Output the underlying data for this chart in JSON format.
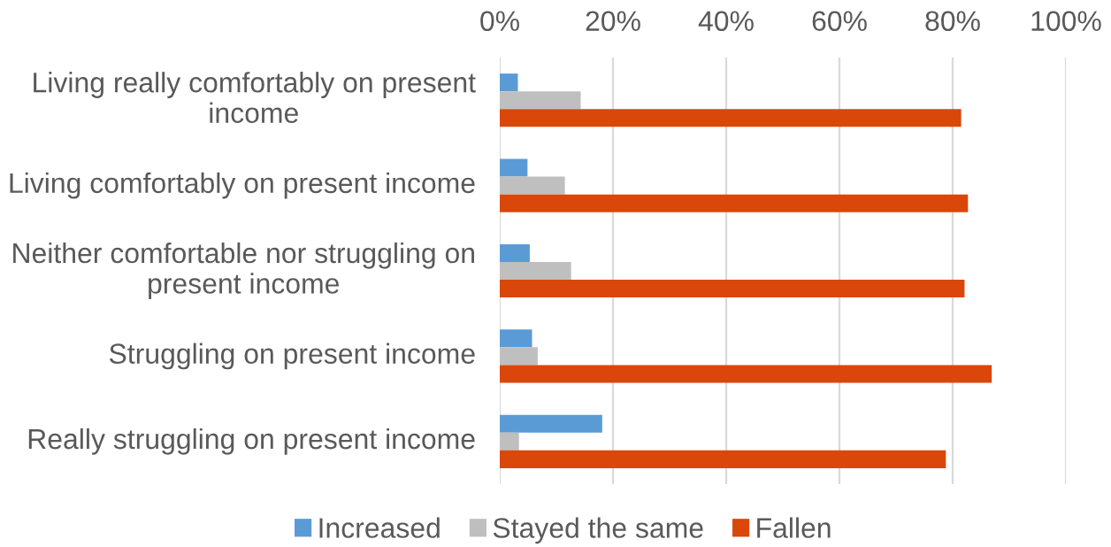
{
  "chart_data": {
    "type": "bar",
    "orientation": "horizontal",
    "categories": [
      "Living really comfortably on present income",
      "Living comfortably on present income",
      "Neither comfortable nor struggling on present income",
      "Struggling on present income",
      "Really struggling on present income"
    ],
    "series": [
      {
        "name": "Increased",
        "color": "#5b9bd5",
        "values": [
          3.2,
          4.9,
          5.3,
          5.7,
          18.1
        ]
      },
      {
        "name": "Stayed the same",
        "color": "#bfbfbf",
        "values": [
          14.3,
          11.5,
          12.6,
          6.7,
          3.4
        ]
      },
      {
        "name": "Fallen",
        "color": "#d9470b",
        "values": [
          81.5,
          82.7,
          82.1,
          86.9,
          78.8
        ]
      }
    ],
    "xlim": [
      0,
      100
    ],
    "xticks": [
      {
        "value": 0,
        "label": "0%"
      },
      {
        "value": 20,
        "label": "20%"
      },
      {
        "value": 40,
        "label": "40%"
      },
      {
        "value": 60,
        "label": "60%"
      },
      {
        "value": 80,
        "label": "80%"
      },
      {
        "value": 100,
        "label": "100%"
      }
    ],
    "grid": "x",
    "legend": "bottom"
  }
}
